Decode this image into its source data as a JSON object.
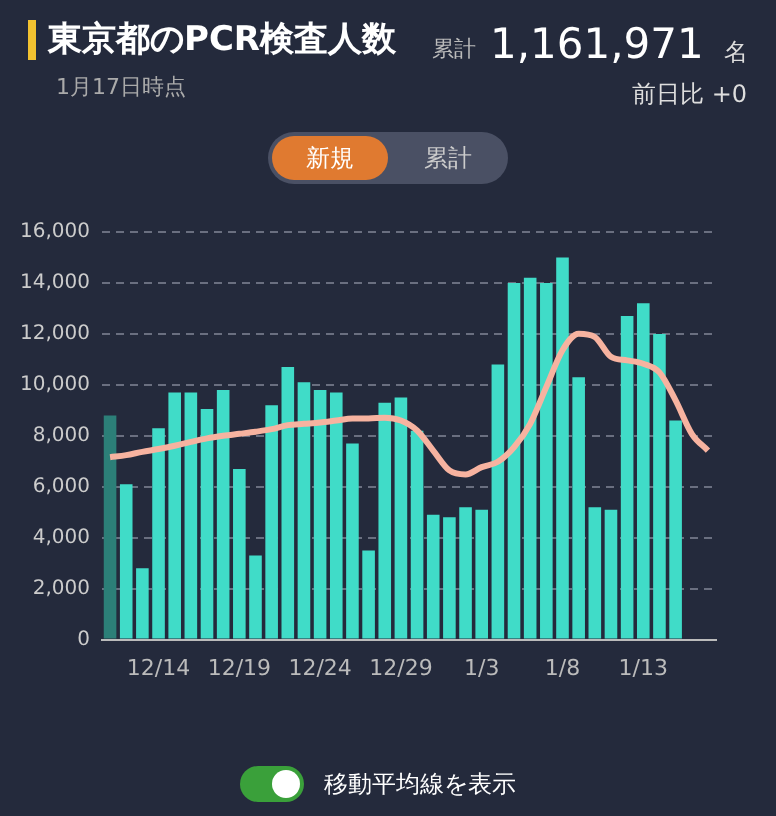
{
  "chart_data": {
    "type": "bar",
    "title": "東京都のPCR検査人数",
    "subtitle": "1月17日時点",
    "annotations": [
      "累計",
      "1,161,971",
      "名",
      "前日比 +0",
      "新規",
      "累計",
      "移動平均線を表示"
    ],
    "categories": [
      null,
      null,
      null,
      "12/14",
      null,
      null,
      null,
      null,
      "12/19",
      null,
      null,
      null,
      null,
      "12/24",
      null,
      null,
      null,
      null,
      "12/29",
      null,
      null,
      null,
      null,
      "1/3",
      null,
      null,
      null,
      null,
      "1/8",
      null,
      null,
      null,
      null,
      "1/13",
      null,
      null,
      null,
      null
    ],
    "series": [
      {
        "colors": [
          "#2c7f78",
          "#40dcc8",
          "#40dcc8",
          "#40dcc8",
          "#40dcc8",
          "#40dcc8",
          "#40dcc8",
          "#40dcc8",
          "#40dcc8",
          "#40dcc8",
          "#40dcc8",
          "#40dcc8",
          "#40dcc8",
          "#40dcc8",
          "#40dcc8",
          "#40dcc8",
          "#40dcc8",
          "#40dcc8",
          "#40dcc8",
          "#40dcc8",
          "#40dcc8",
          "#40dcc8",
          "#40dcc8",
          "#40dcc8",
          "#40dcc8",
          "#40dcc8",
          "#40dcc8",
          "#40dcc8",
          "#40dcc8",
          "#40dcc8",
          "#40dcc8",
          "#40dcc8",
          "#40dcc8",
          "#40dcc8",
          "#40dcc8",
          "#40dcc8",
          "#40dcc8",
          "#40dcc8"
        ],
        "values": [
          8800,
          6100,
          2800,
          8300,
          9700,
          9700,
          9050,
          9800,
          6700,
          3300,
          9200,
          10700,
          10100,
          9800,
          9700,
          7700,
          3500,
          9300,
          9500,
          8200,
          4900,
          4800,
          5200,
          5100,
          10800,
          14000,
          14200,
          14000,
          15000,
          10300,
          5200,
          5100,
          12700,
          13200,
          12000,
          8600,
          null,
          null
        ]
      },
      {
        "type": "line",
        "color": "#f7b3a0",
        "values": [
          7160,
          7240,
          7370,
          7480,
          7610,
          7760,
          7900,
          8000,
          8080,
          8160,
          8260,
          8420,
          8470,
          8520,
          8600,
          8680,
          8680,
          8710,
          8600,
          8210,
          7420,
          6640,
          6480,
          6770,
          6980,
          7550,
          8470,
          9920,
          11360,
          12010,
          11880,
          11100,
          10960,
          10830,
          10490,
          9390,
          8080,
          7420
        ]
      }
    ],
    "ylim": [
      0,
      16000
    ],
    "yticks": [
      {
        "value": 0,
        "label": "0"
      },
      {
        "value": 2000,
        "label": "2,000"
      },
      {
        "value": 4000,
        "label": "4,000"
      },
      {
        "value": 6000,
        "label": "6,000"
      },
      {
        "value": 8000,
        "label": "8,000"
      },
      {
        "value": 10000,
        "label": "10,000"
      },
      {
        "value": 12000,
        "label": "12,000"
      },
      {
        "value": 14000,
        "label": "14,000"
      },
      {
        "value": 16000,
        "label": "16,000"
      }
    ],
    "grid": "y",
    "legend": false,
    "marker": "none",
    "line_style": "solid"
  }
}
